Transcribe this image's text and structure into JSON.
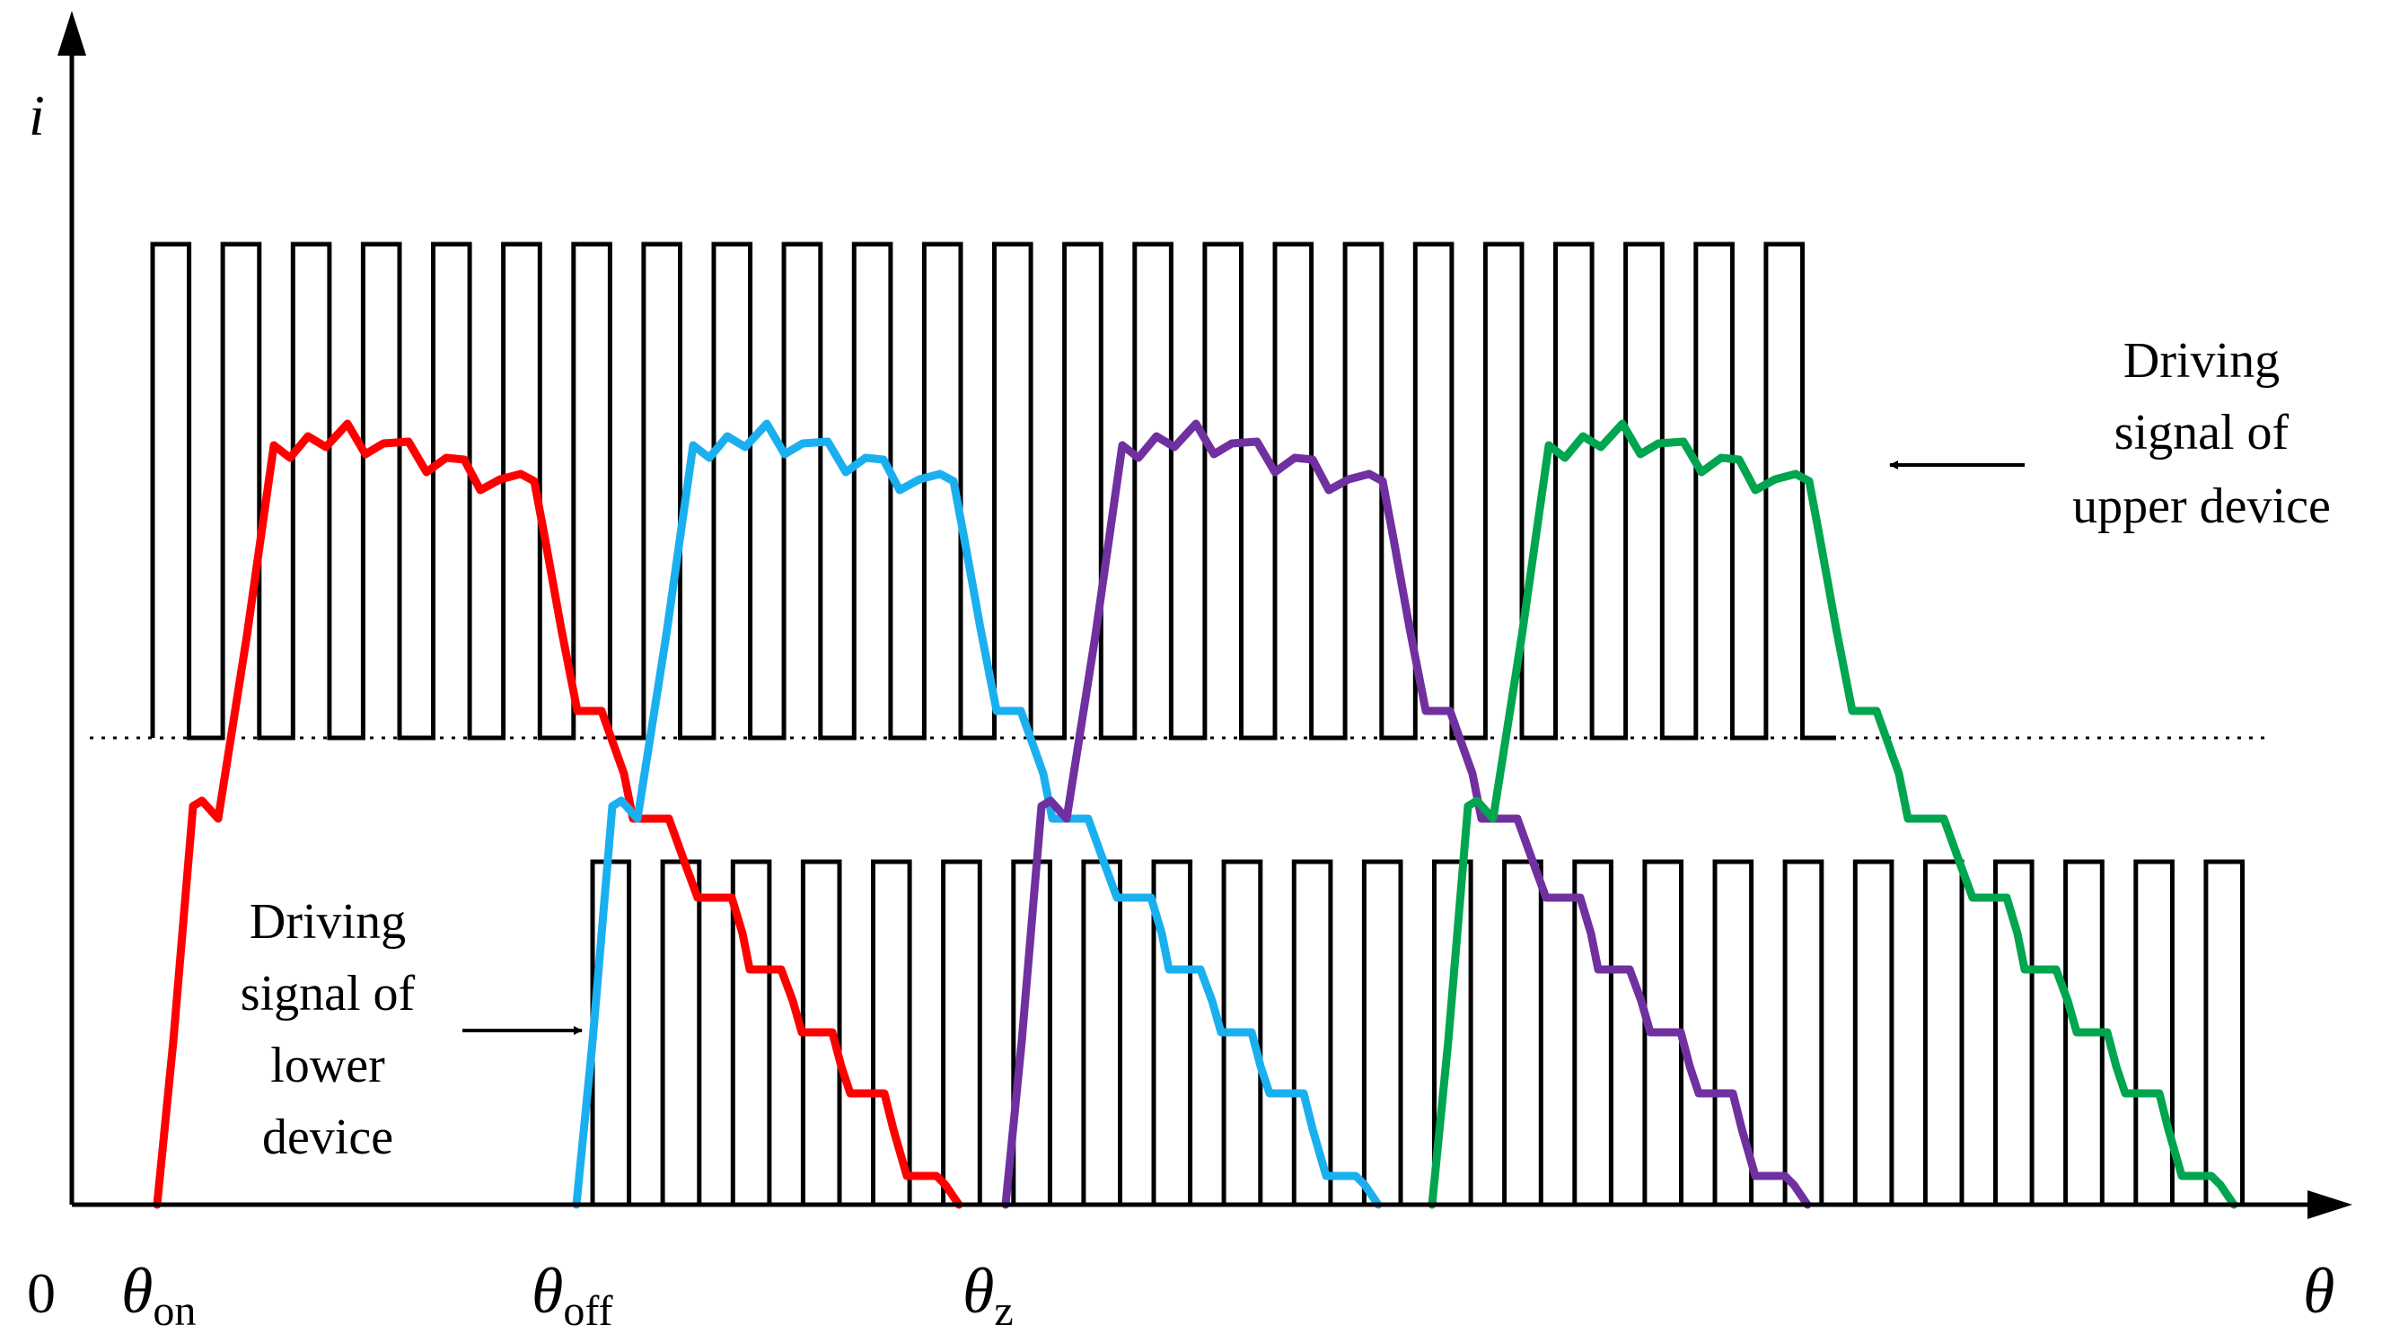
{
  "axes": {
    "y_label": "i",
    "x_label": "θ",
    "origin_label": "0"
  },
  "angle_labels": [
    {
      "symbol": "θ",
      "subscript": "on"
    },
    {
      "symbol": "θ",
      "subscript": "off"
    },
    {
      "symbol": "θ",
      "subscript": "z"
    }
  ],
  "annotations": {
    "upper": {
      "lines": [
        "Driving",
        "signal of",
        "upper device"
      ]
    },
    "lower": {
      "lines": [
        "Driving",
        "signal of",
        "lower",
        "device"
      ]
    }
  },
  "phase_colors": {
    "phase_1": "#ff0000",
    "phase_2": "#1ab0f0",
    "phase_3": "#7030a0",
    "phase_4": "#00a550"
  },
  "pwm": {
    "upper_pulse_count": 24,
    "lower_pulse_count": 24
  }
}
